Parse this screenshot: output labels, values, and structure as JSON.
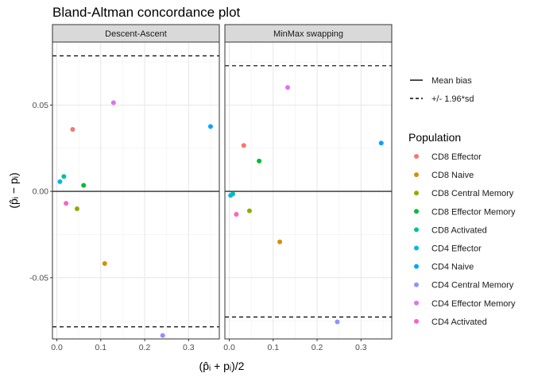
{
  "chart_data": {
    "type": "scatter",
    "title": "Bland-Altman concordance plot",
    "xlabel": "(p̂ᵢ + pᵢ)/2",
    "ylabel": "(p̂ᵢ − pᵢ)",
    "xlim": [
      -0.01,
      0.37
    ],
    "ylim": [
      -0.0855,
      0.0865
    ],
    "x_ticks": [
      0.0,
      0.1,
      0.2,
      0.3
    ],
    "x_tick_labels": [
      "0.0",
      "0.1",
      "0.2",
      "0.3"
    ],
    "y_ticks": [
      -0.05,
      0.0,
      0.05
    ],
    "y_tick_labels": [
      "-0.05",
      "0.00",
      "0.05"
    ],
    "grid": true,
    "legend_position": "right",
    "line_legend": [
      {
        "label": "Mean bias",
        "style": "solid"
      },
      {
        "label": "+/- 1.96*sd",
        "style": "dashed"
      }
    ],
    "legend_title": "Population",
    "populations": [
      {
        "name": "CD8 Effector",
        "color": "#F8766D"
      },
      {
        "name": "CD8 Naive",
        "color": "#D39200"
      },
      {
        "name": "CD8 Central Memory",
        "color": "#93AA00"
      },
      {
        "name": "CD8 Effector Memory",
        "color": "#00BA38"
      },
      {
        "name": "CD8 Activated",
        "color": "#00C19F"
      },
      {
        "name": "CD4 Effector",
        "color": "#00B9E3"
      },
      {
        "name": "CD4 Naive",
        "color": "#00A5FF"
      },
      {
        "name": "CD4 Central Memory",
        "color": "#8F91FF"
      },
      {
        "name": "CD4 Effector Memory",
        "color": "#E36EF6"
      },
      {
        "name": "CD4 Activated",
        "color": "#FF61C3"
      }
    ],
    "panels": [
      {
        "strip": "Descent-Ascent",
        "mean_bias": 0.0,
        "limits": [
          -0.0785,
          0.0785
        ],
        "points": [
          {
            "population": "CD8 Effector",
            "x": 0.036,
            "y": 0.0359
          },
          {
            "population": "CD8 Naive",
            "x": 0.109,
            "y": -0.0418
          },
          {
            "population": "CD8 Central Memory",
            "x": 0.046,
            "y": -0.0101
          },
          {
            "population": "CD8 Effector Memory",
            "x": 0.061,
            "y": 0.0035
          },
          {
            "population": "CD8 Activated",
            "x": 0.016,
            "y": 0.0086
          },
          {
            "population": "CD4 Effector",
            "x": 0.007,
            "y": 0.0056
          },
          {
            "population": "CD4 Naive",
            "x": 0.35,
            "y": 0.0376
          },
          {
            "population": "CD4 Central Memory",
            "x": 0.241,
            "y": -0.0835
          },
          {
            "population": "CD4 Effector Memory",
            "x": 0.129,
            "y": 0.0514
          },
          {
            "population": "CD4 Activated",
            "x": 0.021,
            "y": -0.0069
          }
        ]
      },
      {
        "strip": "MinMax swapping",
        "mean_bias": 0.0,
        "limits": [
          -0.0728,
          0.0728
        ],
        "points": [
          {
            "population": "CD8 Effector",
            "x": 0.033,
            "y": 0.0266
          },
          {
            "population": "CD8 Naive",
            "x": 0.115,
            "y": -0.0293
          },
          {
            "population": "CD8 Central Memory",
            "x": 0.046,
            "y": -0.0113
          },
          {
            "population": "CD8 Effector Memory",
            "x": 0.068,
            "y": 0.0176
          },
          {
            "population": "CD8 Activated",
            "x": 0.008,
            "y": -0.0014
          },
          {
            "population": "CD4 Effector",
            "x": 0.003,
            "y": -0.0023
          },
          {
            "population": "CD4 Naive",
            "x": 0.346,
            "y": 0.028
          },
          {
            "population": "CD4 Central Memory",
            "x": 0.246,
            "y": -0.0756
          },
          {
            "population": "CD4 Effector Memory",
            "x": 0.133,
            "y": 0.0602
          },
          {
            "population": "CD4 Activated",
            "x": 0.016,
            "y": -0.0133
          }
        ]
      }
    ]
  }
}
